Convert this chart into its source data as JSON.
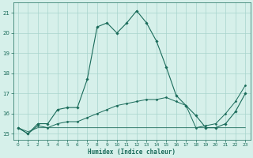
{
  "xlabel": "Humidex (Indice chaleur)",
  "ylabel": "",
  "xlim": [
    -0.5,
    23.5
  ],
  "ylim": [
    14.7,
    21.5
  ],
  "yticks": [
    15,
    16,
    17,
    18,
    19,
    20,
    21
  ],
  "xticks": [
    0,
    1,
    2,
    3,
    4,
    5,
    6,
    7,
    8,
    9,
    10,
    11,
    12,
    13,
    14,
    15,
    16,
    17,
    18,
    19,
    20,
    21,
    22,
    23
  ],
  "bg_color": "#d6f0ea",
  "grid_color": "#a8d4cc",
  "line_color": "#1a6b5a",
  "curve1_y": [
    15.3,
    15.0,
    15.5,
    15.5,
    16.2,
    16.3,
    16.3,
    17.7,
    20.3,
    20.5,
    20.0,
    20.5,
    21.1,
    20.5,
    19.6,
    18.3,
    16.9,
    16.4,
    15.9,
    15.3,
    15.3,
    15.5,
    16.1,
    17.0
  ],
  "curve2_y": [
    15.3,
    15.0,
    15.4,
    15.3,
    15.5,
    15.6,
    15.6,
    15.8,
    16.0,
    16.2,
    16.4,
    16.5,
    16.6,
    16.7,
    16.7,
    16.8,
    16.6,
    16.4,
    15.3,
    15.4,
    15.5,
    16.0,
    16.6,
    17.4
  ],
  "curve3_y": [
    15.3,
    15.1,
    15.3,
    15.3,
    15.3,
    15.3,
    15.3,
    15.3,
    15.3,
    15.3,
    15.3,
    15.3,
    15.3,
    15.3,
    15.3,
    15.3,
    15.3,
    15.3,
    15.3,
    15.3,
    15.3,
    15.3,
    15.3,
    15.3
  ]
}
